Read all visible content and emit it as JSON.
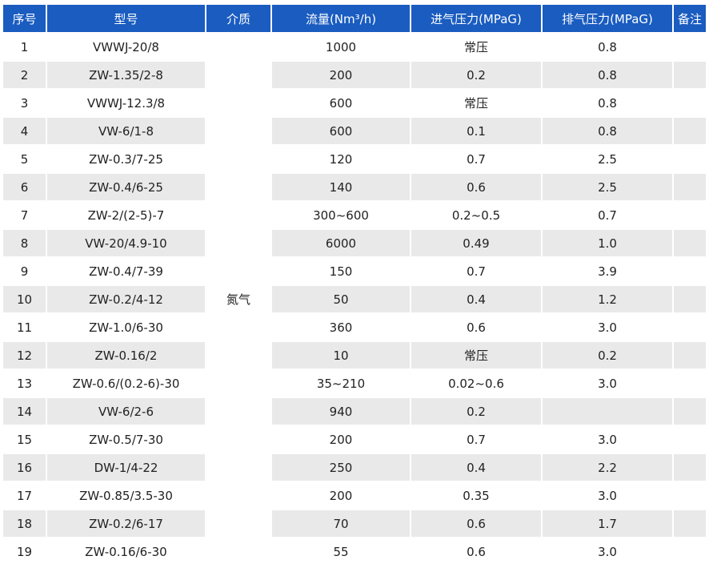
{
  "headers": [
    "序号",
    "型号",
    "介质",
    "流量(Nm³/h)",
    "进气压力(MPaG)",
    "排气压力(MPaG)",
    "备注"
  ],
  "medium": "氮气",
  "rows": [
    {
      "no": "1",
      "model": "VWWJ-20/8",
      "flow": "1000",
      "inlet": "常压",
      "outlet": "0.8",
      "note": ""
    },
    {
      "no": "2",
      "model": "ZW-1.35/2-8",
      "flow": "200",
      "inlet": "0.2",
      "outlet": "0.8",
      "note": ""
    },
    {
      "no": "3",
      "model": "VWWJ-12.3/8",
      "flow": "600",
      "inlet": "常压",
      "outlet": "0.8",
      "note": ""
    },
    {
      "no": "4",
      "model": "VW-6/1-8",
      "flow": "600",
      "inlet": "0.1",
      "outlet": "0.8",
      "note": ""
    },
    {
      "no": "5",
      "model": "ZW-0.3/7-25",
      "flow": "120",
      "inlet": "0.7",
      "outlet": "2.5",
      "note": ""
    },
    {
      "no": "6",
      "model": "ZW-0.4/6-25",
      "flow": "140",
      "inlet": "0.6",
      "outlet": "2.5",
      "note": ""
    },
    {
      "no": "7",
      "model": "ZW-2/(2-5)-7",
      "flow": "300~600",
      "inlet": "0.2~0.5",
      "outlet": "0.7",
      "note": ""
    },
    {
      "no": "8",
      "model": "VW-20/4.9-10",
      "flow": "6000",
      "inlet": "0.49",
      "outlet": "1.0",
      "note": ""
    },
    {
      "no": "9",
      "model": "ZW-0.4/7-39",
      "flow": "150",
      "inlet": "0.7",
      "outlet": "3.9",
      "note": ""
    },
    {
      "no": "10",
      "model": "ZW-0.2/4-12",
      "flow": "50",
      "inlet": "0.4",
      "outlet": "1.2",
      "note": ""
    },
    {
      "no": "11",
      "model": "ZW-1.0/6-30",
      "flow": "360",
      "inlet": "0.6",
      "outlet": "3.0",
      "note": ""
    },
    {
      "no": "12",
      "model": "ZW-0.16/2",
      "flow": "10",
      "inlet": "常压",
      "outlet": "0.2",
      "note": ""
    },
    {
      "no": "13",
      "model": "ZW-0.6/(0.2-6)-30",
      "flow": "35~210",
      "inlet": "0.02~0.6",
      "outlet": "3.0",
      "note": ""
    },
    {
      "no": "14",
      "model": "VW-6/2-6",
      "flow": "940",
      "inlet": "0.2",
      "outlet": "",
      "note": ""
    },
    {
      "no": "15",
      "model": "ZW-0.5/7-30",
      "flow": "200",
      "inlet": "0.7",
      "outlet": "3.0",
      "note": ""
    },
    {
      "no": "16",
      "model": "DW-1/4-22",
      "flow": "250",
      "inlet": "0.4",
      "outlet": "2.2",
      "note": ""
    },
    {
      "no": "17",
      "model": "ZW-0.85/3.5-30",
      "flow": "200",
      "inlet": "0.35",
      "outlet": "3.0",
      "note": ""
    },
    {
      "no": "18",
      "model": "ZW-0.2/6-17",
      "flow": "70",
      "inlet": "0.6",
      "outlet": "1.7",
      "note": ""
    },
    {
      "no": "19",
      "model": "ZW-0.16/6-30",
      "flow": "55",
      "inlet": "0.6",
      "outlet": "3.0",
      "note": ""
    }
  ]
}
